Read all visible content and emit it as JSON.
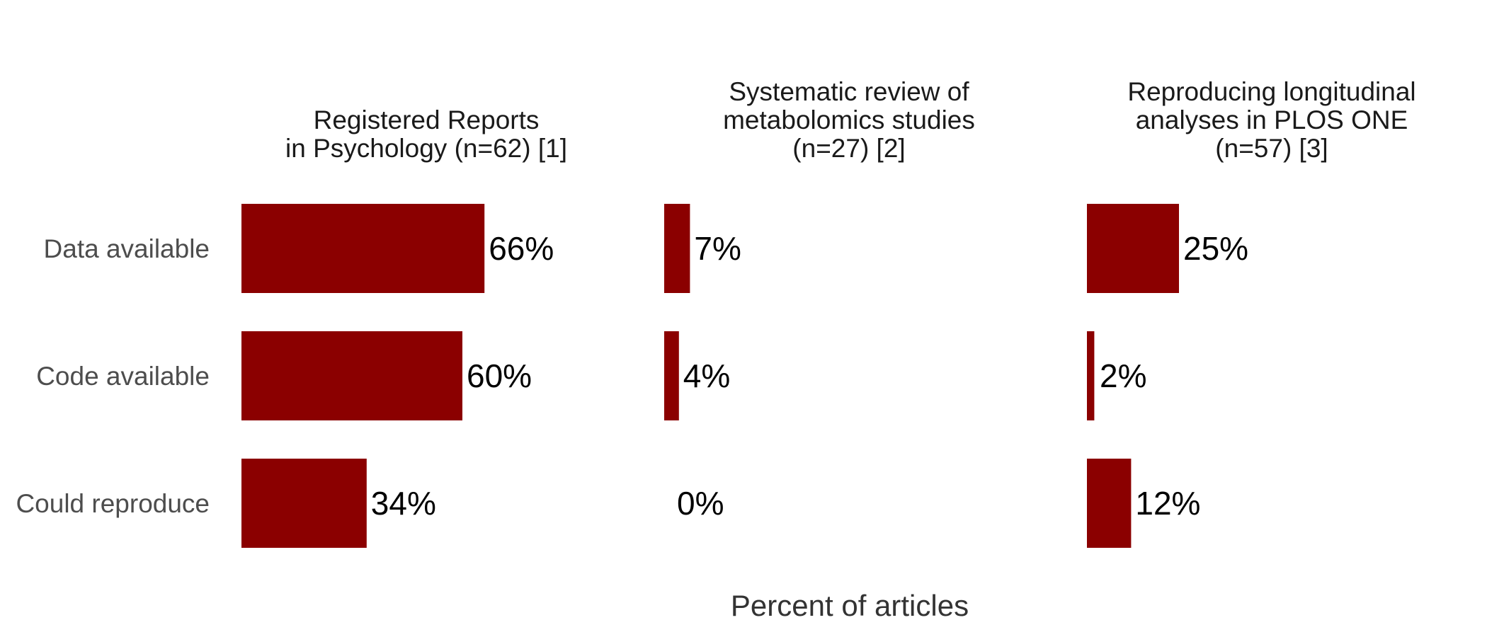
{
  "chart_data": {
    "type": "bar",
    "orientation": "horizontal",
    "xlabel": "Percent of articles",
    "categories": [
      "Data available",
      "Code available",
      "Could reproduce"
    ],
    "bar_color": "#8b0000",
    "xlim": [
      0,
      100
    ],
    "panels": [
      {
        "title": [
          "Registered Reports",
          "in Psychology (n=62) [1]"
        ],
        "values": [
          66,
          60,
          34
        ],
        "value_labels": [
          "66%",
          "60%",
          "34%"
        ]
      },
      {
        "title": [
          "Systematic review of",
          "metabolomics studies",
          "(n=27) [2]"
        ],
        "values": [
          7,
          4,
          0
        ],
        "value_labels": [
          "7%",
          "4%",
          "0%"
        ]
      },
      {
        "title": [
          "Reproducing longitudinal",
          "analyses in PLOS ONE",
          "(n=57) [3]"
        ],
        "values": [
          25,
          2,
          12
        ],
        "value_labels": [
          "25%",
          "2%",
          "12%"
        ]
      }
    ]
  }
}
